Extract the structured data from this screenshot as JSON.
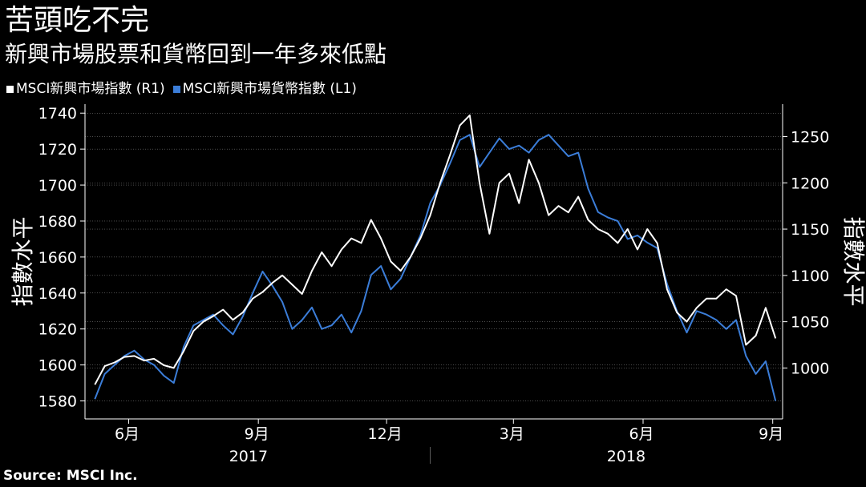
{
  "title": "苦頭吃不完",
  "subtitle": "新興市場股票和貨幣回到一年多來低點",
  "source": "Source: MSCI Inc.",
  "chart_data": {
    "type": "line",
    "legend": [
      {
        "label": "MSCI新興市場指數 (R1)",
        "color": "#ffffff"
      },
      {
        "label": "MSCI新興市場貨幣指數 (L1)",
        "color": "#3b7dd8"
      }
    ],
    "left_axis": {
      "label": "指數水平",
      "min": 1570,
      "max": 1745,
      "ticks": [
        "1580",
        "1600",
        "1620",
        "1640",
        "1660",
        "1680",
        "1700",
        "1720",
        "1740"
      ]
    },
    "right_axis": {
      "label": "指數水平",
      "min": 945,
      "max": 1285,
      "ticks": [
        "1000",
        "1050",
        "1100",
        "1150",
        "1200",
        "1250"
      ]
    },
    "x_ticks": [
      "6月",
      "9月",
      "12月",
      "3月",
      "6月",
      "9月"
    ],
    "year_labels": [
      "2017",
      "2018"
    ],
    "series": [
      {
        "name": "MSCI新興市場指數 (R1)",
        "axis": "right",
        "color": "#ffffff",
        "points": [
          [
            "2017-05-08",
            982
          ],
          [
            "2017-05-15",
            1002
          ],
          [
            "2017-05-22",
            1006
          ],
          [
            "2017-05-29",
            1012
          ],
          [
            "2017-06-05",
            1013
          ],
          [
            "2017-06-12",
            1008
          ],
          [
            "2017-06-19",
            1010
          ],
          [
            "2017-06-26",
            1003
          ],
          [
            "2017-07-03",
            1000
          ],
          [
            "2017-07-10",
            1018
          ],
          [
            "2017-07-17",
            1040
          ],
          [
            "2017-07-24",
            1050
          ],
          [
            "2017-07-31",
            1056
          ],
          [
            "2017-08-07",
            1063
          ],
          [
            "2017-08-14",
            1052
          ],
          [
            "2017-08-21",
            1060
          ],
          [
            "2017-08-28",
            1075
          ],
          [
            "2017-09-04",
            1082
          ],
          [
            "2017-09-11",
            1092
          ],
          [
            "2017-09-18",
            1100
          ],
          [
            "2017-09-25",
            1090
          ],
          [
            "2017-10-02",
            1080
          ],
          [
            "2017-10-09",
            1105
          ],
          [
            "2017-10-16",
            1125
          ],
          [
            "2017-10-23",
            1110
          ],
          [
            "2017-10-30",
            1128
          ],
          [
            "2017-11-06",
            1140
          ],
          [
            "2017-11-13",
            1135
          ],
          [
            "2017-11-20",
            1160
          ],
          [
            "2017-11-27",
            1140
          ],
          [
            "2017-12-04",
            1115
          ],
          [
            "2017-12-11",
            1105
          ],
          [
            "2017-12-18",
            1120
          ],
          [
            "2017-12-25",
            1140
          ],
          [
            "2018-01-01",
            1165
          ],
          [
            "2018-01-08",
            1200
          ],
          [
            "2018-01-15",
            1230
          ],
          [
            "2018-01-22",
            1262
          ],
          [
            "2018-01-29",
            1273
          ],
          [
            "2018-02-05",
            1200
          ],
          [
            "2018-02-12",
            1145
          ],
          [
            "2018-02-19",
            1200
          ],
          [
            "2018-02-26",
            1210
          ],
          [
            "2018-03-05",
            1178
          ],
          [
            "2018-03-12",
            1225
          ],
          [
            "2018-03-19",
            1200
          ],
          [
            "2018-03-26",
            1165
          ],
          [
            "2018-04-02",
            1175
          ],
          [
            "2018-04-09",
            1168
          ],
          [
            "2018-04-16",
            1185
          ],
          [
            "2018-04-23",
            1160
          ],
          [
            "2018-04-30",
            1150
          ],
          [
            "2018-05-07",
            1145
          ],
          [
            "2018-05-14",
            1135
          ],
          [
            "2018-05-21",
            1150
          ],
          [
            "2018-05-28",
            1128
          ],
          [
            "2018-06-04",
            1150
          ],
          [
            "2018-06-11",
            1135
          ],
          [
            "2018-06-18",
            1085
          ],
          [
            "2018-06-25",
            1060
          ],
          [
            "2018-07-02",
            1050
          ],
          [
            "2018-07-09",
            1065
          ],
          [
            "2018-07-16",
            1075
          ],
          [
            "2018-07-23",
            1075
          ],
          [
            "2018-07-30",
            1085
          ],
          [
            "2018-08-06",
            1078
          ],
          [
            "2018-08-13",
            1025
          ],
          [
            "2018-08-20",
            1035
          ],
          [
            "2018-08-27",
            1065
          ],
          [
            "2018-09-03",
            1032
          ]
        ]
      },
      {
        "name": "MSCI新興市場貨幣指數 (L1)",
        "axis": "left",
        "color": "#3b7dd8",
        "points": [
          [
            "2017-05-08",
            1581
          ],
          [
            "2017-05-15",
            1595
          ],
          [
            "2017-05-22",
            1600
          ],
          [
            "2017-05-29",
            1605
          ],
          [
            "2017-06-05",
            1608
          ],
          [
            "2017-06-12",
            1603
          ],
          [
            "2017-06-19",
            1600
          ],
          [
            "2017-06-26",
            1594
          ],
          [
            "2017-07-03",
            1590
          ],
          [
            "2017-07-10",
            1610
          ],
          [
            "2017-07-17",
            1622
          ],
          [
            "2017-07-24",
            1625
          ],
          [
            "2017-07-31",
            1628
          ],
          [
            "2017-08-07",
            1622
          ],
          [
            "2017-08-14",
            1617
          ],
          [
            "2017-08-21",
            1627
          ],
          [
            "2017-08-28",
            1640
          ],
          [
            "2017-09-04",
            1652
          ],
          [
            "2017-09-11",
            1644
          ],
          [
            "2017-09-18",
            1635
          ],
          [
            "2017-09-25",
            1620
          ],
          [
            "2017-10-02",
            1625
          ],
          [
            "2017-10-09",
            1632
          ],
          [
            "2017-10-16",
            1620
          ],
          [
            "2017-10-23",
            1622
          ],
          [
            "2017-10-30",
            1628
          ],
          [
            "2017-11-06",
            1618
          ],
          [
            "2017-11-13",
            1630
          ],
          [
            "2017-11-20",
            1650
          ],
          [
            "2017-11-27",
            1655
          ],
          [
            "2017-12-04",
            1642
          ],
          [
            "2017-12-11",
            1648
          ],
          [
            "2017-12-18",
            1660
          ],
          [
            "2017-12-25",
            1672
          ],
          [
            "2018-01-01",
            1690
          ],
          [
            "2018-01-08",
            1700
          ],
          [
            "2018-01-15",
            1712
          ],
          [
            "2018-01-22",
            1725
          ],
          [
            "2018-01-29",
            1728
          ],
          [
            "2018-02-05",
            1710
          ],
          [
            "2018-02-12",
            1718
          ],
          [
            "2018-02-19",
            1726
          ],
          [
            "2018-02-26",
            1720
          ],
          [
            "2018-03-05",
            1722
          ],
          [
            "2018-03-12",
            1718
          ],
          [
            "2018-03-19",
            1725
          ],
          [
            "2018-03-26",
            1728
          ],
          [
            "2018-04-02",
            1722
          ],
          [
            "2018-04-09",
            1716
          ],
          [
            "2018-04-16",
            1718
          ],
          [
            "2018-04-23",
            1698
          ],
          [
            "2018-04-30",
            1685
          ],
          [
            "2018-05-07",
            1682
          ],
          [
            "2018-05-14",
            1680
          ],
          [
            "2018-05-21",
            1670
          ],
          [
            "2018-05-28",
            1672
          ],
          [
            "2018-06-04",
            1668
          ],
          [
            "2018-06-11",
            1665
          ],
          [
            "2018-06-18",
            1645
          ],
          [
            "2018-06-25",
            1630
          ],
          [
            "2018-07-02",
            1618
          ],
          [
            "2018-07-09",
            1630
          ],
          [
            "2018-07-16",
            1628
          ],
          [
            "2018-07-23",
            1625
          ],
          [
            "2018-07-30",
            1620
          ],
          [
            "2018-08-06",
            1625
          ],
          [
            "2018-08-13",
            1605
          ],
          [
            "2018-08-20",
            1595
          ],
          [
            "2018-08-27",
            1602
          ],
          [
            "2018-09-03",
            1580
          ]
        ]
      }
    ]
  }
}
